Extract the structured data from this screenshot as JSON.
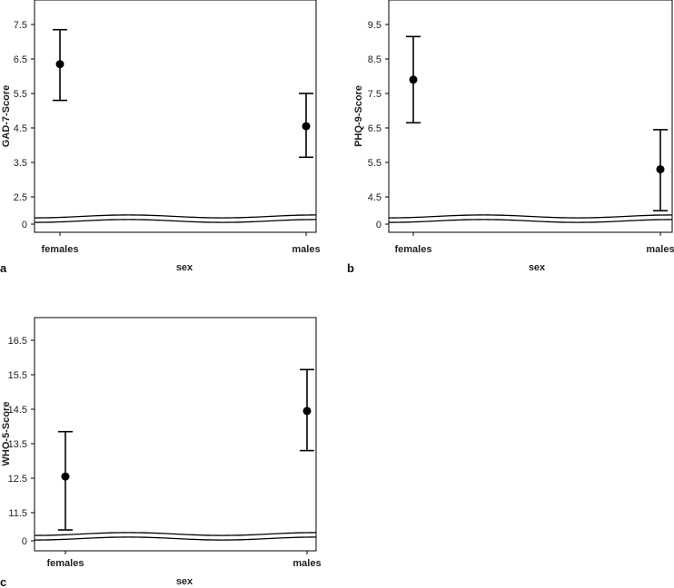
{
  "chart_data": [
    {
      "panel_label": "a",
      "type": "scatter",
      "style": "mean-with-error-bars",
      "categories": [
        "females",
        "males"
      ],
      "xlabel": "sex",
      "ylabel": "GAD-7-Score",
      "yticks": [
        0,
        2.5,
        3.5,
        4.5,
        5.5,
        6.5,
        7.5
      ],
      "y_break": true,
      "series": [
        {
          "values": [
            6.35,
            4.55
          ],
          "lower": [
            5.3,
            3.65
          ],
          "upper": [
            7.35,
            5.5
          ]
        }
      ]
    },
    {
      "panel_label": "b",
      "type": "scatter",
      "style": "mean-with-error-bars",
      "categories": [
        "females",
        "males"
      ],
      "xlabel": "sex",
      "ylabel": "PHQ-9-Score",
      "yticks": [
        0,
        4.5,
        5.5,
        6.5,
        7.5,
        8.5,
        9.5
      ],
      "y_break": true,
      "series": [
        {
          "values": [
            7.9,
            5.3
          ],
          "lower": [
            6.65,
            4.1
          ],
          "upper": [
            9.15,
            6.45
          ]
        }
      ]
    },
    {
      "panel_label": "c",
      "type": "scatter",
      "style": "mean-with-error-bars",
      "categories": [
        "females",
        "males"
      ],
      "xlabel": "sex",
      "ylabel": "WHO-5-Score",
      "yticks": [
        0,
        11.5,
        12.5,
        13.5,
        14.5,
        15.5,
        16.5
      ],
      "y_break": true,
      "series": [
        {
          "values": [
            12.55,
            14.45
          ],
          "lower": [
            11.0,
            13.3
          ],
          "upper": [
            13.85,
            15.65
          ]
        }
      ]
    }
  ],
  "colors": {
    "marker": "#000000",
    "frame": "#000000",
    "break": "#000000"
  }
}
